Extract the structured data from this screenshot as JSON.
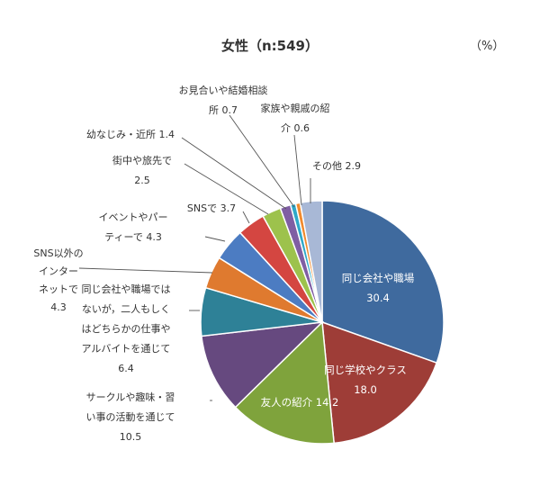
{
  "chart_data": {
    "type": "pie",
    "title": "女性（n:549）",
    "unit": "（%）",
    "start_angle_deg": 0,
    "direction": "clockwise",
    "slices": [
      {
        "label": [
          "同じ会社や職場",
          "30.4"
        ],
        "value": 30.4,
        "color": "#3F6A9E",
        "label_inside": true
      },
      {
        "label": [
          "同じ学校やクラス",
          "18.0"
        ],
        "value": 18.0,
        "color": "#9E3D37",
        "label_inside": true
      },
      {
        "label": [
          "友人の紹介 14.2"
        ],
        "value": 14.2,
        "color": "#7FA33C",
        "label_inside": true
      },
      {
        "label": [
          "サークルや趣味・習",
          "い事の活動を通じて",
          "10.5"
        ],
        "value": 10.5,
        "color": "#66497F"
      },
      {
        "label": [
          "同じ会社や職場では",
          "ないが，二人もしく",
          "はどちらかの仕事や",
          "アルバイトを通じて",
          "6.4"
        ],
        "value": 6.4,
        "color": "#2E8197"
      },
      {
        "label": [
          "SNS以外の",
          "インター",
          "ネットで",
          "4.3"
        ],
        "value": 4.3,
        "color": "#DF7A2F"
      },
      {
        "label": [
          "イベントやパー",
          "ティーで 4.3"
        ],
        "value": 4.3,
        "color": "#4C7CC2"
      },
      {
        "label": [
          "SNSで 3.7"
        ],
        "value": 3.7,
        "color": "#D44641"
      },
      {
        "label": [
          "街中や旅先で",
          "2.5"
        ],
        "value": 2.5,
        "color": "#9DC24C"
      },
      {
        "label": [
          "幼なじみ・近所 1.4"
        ],
        "value": 1.4,
        "color": "#7F5EA3"
      },
      {
        "label": [
          "お見合いや結婚相談",
          "所 0.7"
        ],
        "value": 0.7,
        "color": "#2FA8C9"
      },
      {
        "label": [
          "家族や親戚の紹",
          "介 0.6"
        ],
        "value": 0.6,
        "color": "#F08A2E"
      },
      {
        "label": [
          "その他 2.9"
        ],
        "value": 2.9,
        "color": "#A8B8D6"
      }
    ]
  }
}
